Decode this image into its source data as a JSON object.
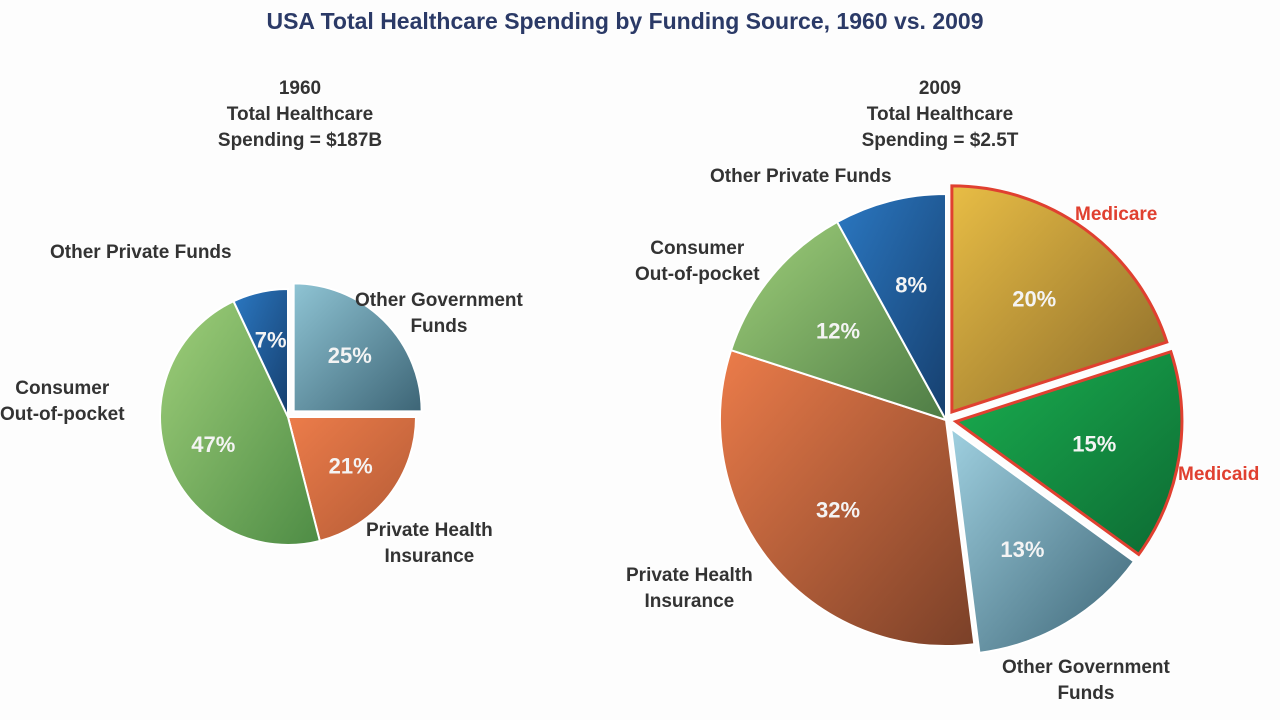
{
  "chart_data": [
    {
      "type": "pie",
      "title": "USA Total Healthcare Spending by Funding Source, 1960 vs. 2009",
      "subtitle": [
        "1960",
        "Total Healthcare",
        "Spending = $187B"
      ],
      "slices": [
        {
          "label": "Other Government Funds",
          "value": 25,
          "display": "25%",
          "color": "#8fc4d4",
          "color2": "#3d6576",
          "exploded": true
        },
        {
          "label": "Private Health Insurance",
          "value": 21,
          "display": "21%",
          "color": "#ec7c4a",
          "color2": "#b25a35",
          "exploded": false
        },
        {
          "label": "Consumer Out-of-pocket",
          "value": 47,
          "display": "47%",
          "color": "#9fcf7a",
          "color2": "#4e8c45",
          "exploded": false
        },
        {
          "label": "Other Private Funds",
          "value": 7,
          "display": "7%",
          "color": "#2b78c2",
          "color2": "#163f6e",
          "exploded": false
        }
      ]
    },
    {
      "type": "pie",
      "subtitle": [
        "2009",
        "Total Healthcare",
        "Spending = $2.5T"
      ],
      "slices": [
        {
          "label": "Medicare",
          "value": 20,
          "display": "20%",
          "color": "#e8bd45",
          "color2": "#8a6a2a",
          "exploded": true,
          "highlight": "#e04030"
        },
        {
          "label": "Medicaid",
          "value": 15,
          "display": "15%",
          "color": "#1ab050",
          "color2": "#0d6a33",
          "exploded": true,
          "highlight": "#e04030"
        },
        {
          "label": "Other Government Funds",
          "value": 13,
          "display": "13%",
          "color": "#9fd0e0",
          "color2": "#3d6576",
          "exploded": true
        },
        {
          "label": "Private Health Insurance",
          "value": 32,
          "display": "32%",
          "color": "#ec7c4a",
          "color2": "#7a4028",
          "exploded": false
        },
        {
          "label": "Consumer Out-of-pocket",
          "value": 12,
          "display": "12%",
          "color": "#9fcf7a",
          "color2": "#4e7c45",
          "exploded": false
        },
        {
          "label": "Other Private Funds",
          "value": 8,
          "display": "8%",
          "color": "#2b78c2",
          "color2": "#163f6e",
          "exploded": false
        }
      ]
    }
  ],
  "labels_1960": {
    "other_private": "Other Private Funds",
    "other_gov": [
      "Other Government",
      "Funds"
    ],
    "consumer": [
      "Consumer",
      "Out-of-pocket"
    ],
    "private_ins": [
      "Private Health",
      "Insurance"
    ]
  },
  "labels_2009": {
    "other_private": "Other Private Funds",
    "consumer": [
      "Consumer",
      "Out-of-pocket"
    ],
    "medicare": "Medicare",
    "medicaid": "Medicaid",
    "private_ins": [
      "Private Health",
      "Insurance"
    ],
    "other_gov": [
      "Other Government",
      "Funds"
    ]
  }
}
